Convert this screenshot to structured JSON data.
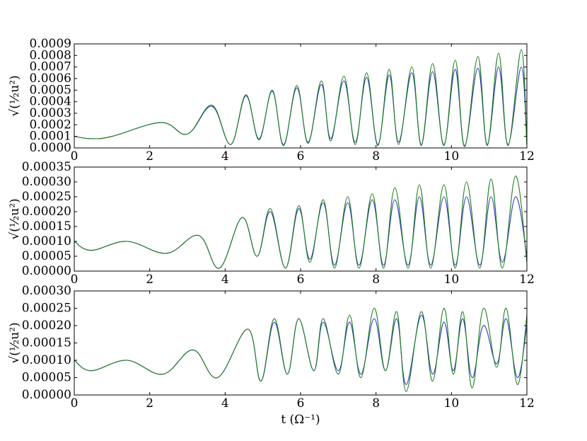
{
  "chart_data": [
    {
      "type": "line",
      "ylabel": "√(½u²)",
      "xlim": [
        0,
        12
      ],
      "ylim": [
        0,
        0.0009
      ],
      "x_ticks": [
        "0",
        "2",
        "4",
        "6",
        "8",
        "10",
        "12"
      ],
      "y_ticks": [
        "0.0000",
        "0.0001",
        "0.0002",
        "0.0003",
        "0.0004",
        "0.0005",
        "0.0006",
        "0.0007",
        "0.0008",
        "0.0009"
      ],
      "grid": false,
      "series": [
        {
          "color": "#2c3ab8",
          "points": [
            [
              0,
              0.0001
            ],
            [
              0.45,
              8e-05
            ],
            [
              1.0,
              0.0001
            ],
            [
              2.3,
              0.00022
            ],
            [
              3.0,
              0.00012
            ],
            [
              3.65,
              0.00036
            ],
            [
              4.15,
              3e-05
            ],
            [
              4.55,
              0.00045
            ],
            [
              4.9,
              8e-05
            ],
            [
              5.25,
              0.00049
            ],
            [
              5.55,
              3e-05
            ],
            [
              5.9,
              0.00052
            ],
            [
              6.2,
              5e-05
            ],
            [
              6.55,
              0.00055
            ],
            [
              6.8,
              8e-05
            ],
            [
              7.15,
              0.00058
            ],
            [
              7.45,
              5e-05
            ],
            [
              7.75,
              0.00061
            ],
            [
              8.05,
              3e-05
            ],
            [
              8.35,
              0.00063
            ],
            [
              8.6,
              5e-05
            ],
            [
              8.95,
              0.00065
            ],
            [
              9.2,
              3e-05
            ],
            [
              9.5,
              0.00066
            ],
            [
              9.8,
              3e-05
            ],
            [
              10.1,
              0.00068
            ],
            [
              10.35,
              2e-05
            ],
            [
              10.7,
              0.00069
            ],
            [
              10.95,
              3e-05
            ],
            [
              11.25,
              0.0007
            ],
            [
              11.5,
              3e-05
            ],
            [
              11.85,
              0.0007
            ],
            [
              12.0,
              3e-05
            ]
          ]
        },
        {
          "color": "#1e7d1e",
          "points": [
            [
              0,
              0.0001
            ],
            [
              0.45,
              8e-05
            ],
            [
              1.0,
              0.0001
            ],
            [
              2.3,
              0.00022
            ],
            [
              3.0,
              0.00012
            ],
            [
              3.65,
              0.00037
            ],
            [
              4.15,
              3e-05
            ],
            [
              4.55,
              0.00046
            ],
            [
              4.9,
              7e-05
            ],
            [
              5.25,
              0.0005
            ],
            [
              5.55,
              2e-05
            ],
            [
              5.9,
              0.00054
            ],
            [
              6.2,
              4e-05
            ],
            [
              6.55,
              0.00058
            ],
            [
              6.8,
              6e-05
            ],
            [
              7.15,
              0.00062
            ],
            [
              7.45,
              3e-05
            ],
            [
              7.75,
              0.00065
            ],
            [
              8.05,
              2e-05
            ],
            [
              8.35,
              0.00068
            ],
            [
              8.6,
              3e-05
            ],
            [
              8.95,
              0.0007
            ],
            [
              9.2,
              2e-05
            ],
            [
              9.5,
              0.00073
            ],
            [
              9.8,
              2e-05
            ],
            [
              10.1,
              0.00076
            ],
            [
              10.35,
              1e-05
            ],
            [
              10.7,
              0.00079
            ],
            [
              10.95,
              2e-05
            ],
            [
              11.25,
              0.00082
            ],
            [
              11.5,
              2e-05
            ],
            [
              11.85,
              0.00085
            ],
            [
              12.0,
              2e-05
            ]
          ]
        }
      ]
    },
    {
      "type": "line",
      "ylabel": "√(½u²)",
      "xlim": [
        0,
        12
      ],
      "ylim": [
        0,
        0.00035
      ],
      "x_ticks": [
        "0",
        "2",
        "4",
        "6",
        "8",
        "10",
        "12"
      ],
      "y_ticks": [
        "0.00000",
        "0.00005",
        "0.00010",
        "0.00015",
        "0.00020",
        "0.00025",
        "0.00030",
        "0.00035"
      ],
      "grid": false,
      "series": [
        {
          "color": "#2c3ab8",
          "points": [
            [
              0,
              0.0001
            ],
            [
              0.45,
              7e-05
            ],
            [
              1.4,
              0.0001
            ],
            [
              2.45,
              6e-05
            ],
            [
              3.3,
              0.00012
            ],
            [
              3.85,
              1e-05
            ],
            [
              4.45,
              0.00018
            ],
            [
              4.85,
              5e-05
            ],
            [
              5.2,
              0.0002
            ],
            [
              5.6,
              1e-05
            ],
            [
              5.95,
              0.00021
            ],
            [
              6.25,
              4e-05
            ],
            [
              6.6,
              0.00023
            ],
            [
              6.9,
              2e-05
            ],
            [
              7.25,
              0.00023
            ],
            [
              7.55,
              2e-05
            ],
            [
              7.9,
              0.00024
            ],
            [
              8.2,
              2e-05
            ],
            [
              8.5,
              0.00024
            ],
            [
              8.85,
              2e-05
            ],
            [
              9.15,
              0.00025
            ],
            [
              9.45,
              2e-05
            ],
            [
              9.8,
              0.00025
            ],
            [
              10.1,
              2e-05
            ],
            [
              10.4,
              0.00025
            ],
            [
              10.75,
              2e-05
            ],
            [
              11.05,
              0.00025
            ],
            [
              11.35,
              3e-05
            ],
            [
              11.7,
              0.00025
            ],
            [
              12.0,
              5e-05
            ]
          ]
        },
        {
          "color": "#1e7d1e",
          "points": [
            [
              0,
              0.0001
            ],
            [
              0.45,
              7e-05
            ],
            [
              1.4,
              0.0001
            ],
            [
              2.45,
              6e-05
            ],
            [
              3.3,
              0.00012
            ],
            [
              3.85,
              1e-05
            ],
            [
              4.45,
              0.00018
            ],
            [
              4.85,
              5e-05
            ],
            [
              5.2,
              0.00021
            ],
            [
              5.6,
              1e-05
            ],
            [
              5.95,
              0.00022
            ],
            [
              6.25,
              3e-05
            ],
            [
              6.6,
              0.00024
            ],
            [
              6.9,
              1e-05
            ],
            [
              7.25,
              0.00025
            ],
            [
              7.55,
              1e-05
            ],
            [
              7.9,
              0.00026
            ],
            [
              8.2,
              1e-05
            ],
            [
              8.5,
              0.00028
            ],
            [
              8.85,
              1e-05
            ],
            [
              9.15,
              0.00029
            ],
            [
              9.45,
              1e-05
            ],
            [
              9.8,
              0.00029
            ],
            [
              10.1,
              1e-05
            ],
            [
              10.4,
              0.0003
            ],
            [
              10.75,
              1e-05
            ],
            [
              11.05,
              0.00031
            ],
            [
              11.35,
              1e-05
            ],
            [
              11.7,
              0.00032
            ],
            [
              12.0,
              3e-05
            ]
          ]
        }
      ]
    },
    {
      "type": "line",
      "ylabel": "√(½u²)",
      "xlabel": "t (Ω⁻¹)",
      "xlim": [
        0,
        12
      ],
      "ylim": [
        0,
        0.0003
      ],
      "x_ticks": [
        "0",
        "2",
        "4",
        "6",
        "8",
        "10",
        "12"
      ],
      "y_ticks": [
        "0.00000",
        "0.00005",
        "0.00010",
        "0.00015",
        "0.00020",
        "0.00025",
        "0.00030"
      ],
      "grid": false,
      "series": [
        {
          "color": "#2c3ab8",
          "points": [
            [
              0,
              0.0001
            ],
            [
              0.45,
              7e-05
            ],
            [
              1.4,
              0.0001
            ],
            [
              2.35,
              6e-05
            ],
            [
              3.15,
              0.00013
            ],
            [
              3.8,
              5e-05
            ],
            [
              4.6,
              0.00019
            ],
            [
              4.95,
              4e-05
            ],
            [
              5.3,
              0.00021
            ],
            [
              5.65,
              6e-05
            ],
            [
              5.95,
              0.00022
            ],
            [
              6.35,
              7e-05
            ],
            [
              6.6,
              0.00021
            ],
            [
              7.0,
              7e-05
            ],
            [
              7.3,
              0.00021
            ],
            [
              7.6,
              6e-05
            ],
            [
              7.95,
              0.00022
            ],
            [
              8.25,
              7e-05
            ],
            [
              8.55,
              0.00022
            ],
            [
              8.8,
              3e-05
            ],
            [
              9.2,
              0.00023
            ],
            [
              9.5,
              6e-05
            ],
            [
              9.8,
              0.00021
            ],
            [
              10.05,
              7e-05
            ],
            [
              10.3,
              0.00022
            ],
            [
              10.55,
              5e-05
            ],
            [
              10.85,
              0.0002
            ],
            [
              11.2,
              9e-05
            ],
            [
              11.45,
              0.00022
            ],
            [
              11.75,
              5e-05
            ],
            [
              12.0,
              0.0002
            ]
          ]
        },
        {
          "color": "#1e7d1e",
          "points": [
            [
              0,
              0.0001
            ],
            [
              0.45,
              7e-05
            ],
            [
              1.4,
              0.0001
            ],
            [
              2.35,
              6e-05
            ],
            [
              3.15,
              0.00013
            ],
            [
              3.8,
              5e-05
            ],
            [
              4.6,
              0.00019
            ],
            [
              4.95,
              4e-05
            ],
            [
              5.3,
              0.00022
            ],
            [
              5.65,
              6e-05
            ],
            [
              5.95,
              0.00022
            ],
            [
              6.35,
              7e-05
            ],
            [
              6.6,
              0.00022
            ],
            [
              7.0,
              6e-05
            ],
            [
              7.3,
              0.00023
            ],
            [
              7.6,
              5e-05
            ],
            [
              7.95,
              0.00025
            ],
            [
              8.25,
              7e-05
            ],
            [
              8.55,
              0.00024
            ],
            [
              8.8,
              1e-05
            ],
            [
              9.2,
              0.00024
            ],
            [
              9.5,
              4e-05
            ],
            [
              9.8,
              0.00025
            ],
            [
              10.05,
              6e-05
            ],
            [
              10.3,
              0.00024
            ],
            [
              10.55,
              2e-05
            ],
            [
              10.85,
              0.00025
            ],
            [
              11.2,
              8e-05
            ],
            [
              11.45,
              0.00025
            ],
            [
              11.75,
              3e-05
            ],
            [
              12.0,
              0.00023
            ]
          ]
        }
      ]
    }
  ]
}
